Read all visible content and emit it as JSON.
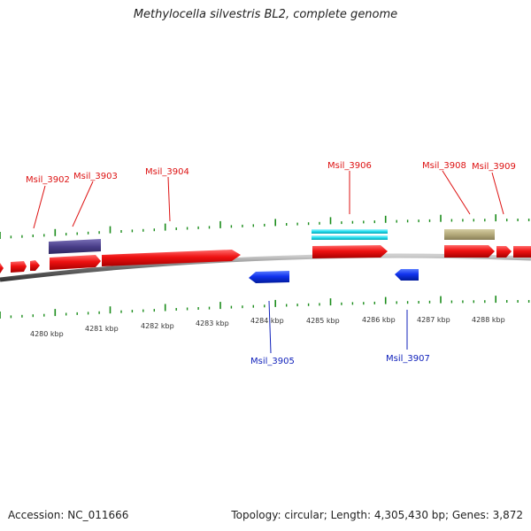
{
  "title": "Methylocella silvestris BL2, complete genome",
  "footer": {
    "accession": "Accession: NC_011666",
    "summary": "Topology: circular; Length: 4,305,430 bp; Genes: 3,872"
  },
  "colors": {
    "cds_forward": "#ee1111",
    "cds_reverse": "#1133ee",
    "label_forward": "#dd1111",
    "label_reverse": "#1122bb",
    "trna_purple": "#4a3f8a",
    "misc_cyan": "#22ddee",
    "misc_khaki": "#b3a97a",
    "tick": "#1a8c1a",
    "backbone": "#777777"
  },
  "axis": {
    "unit": "kbp",
    "labels": [
      "4280 kbp",
      "4281 kbp",
      "4282 kbp",
      "4283 kbp",
      "4284 kbp",
      "4285 kbp",
      "4286 kbp",
      "4287 kbp",
      "4288 kbp"
    ]
  },
  "genes": {
    "forward_labeled": [
      "Msil_3902",
      "Msil_3903",
      "Msil_3904",
      "Msil_3906",
      "Msil_3908",
      "Msil_3909"
    ],
    "reverse_labeled": [
      "Msil_3905",
      "Msil_3907"
    ]
  }
}
